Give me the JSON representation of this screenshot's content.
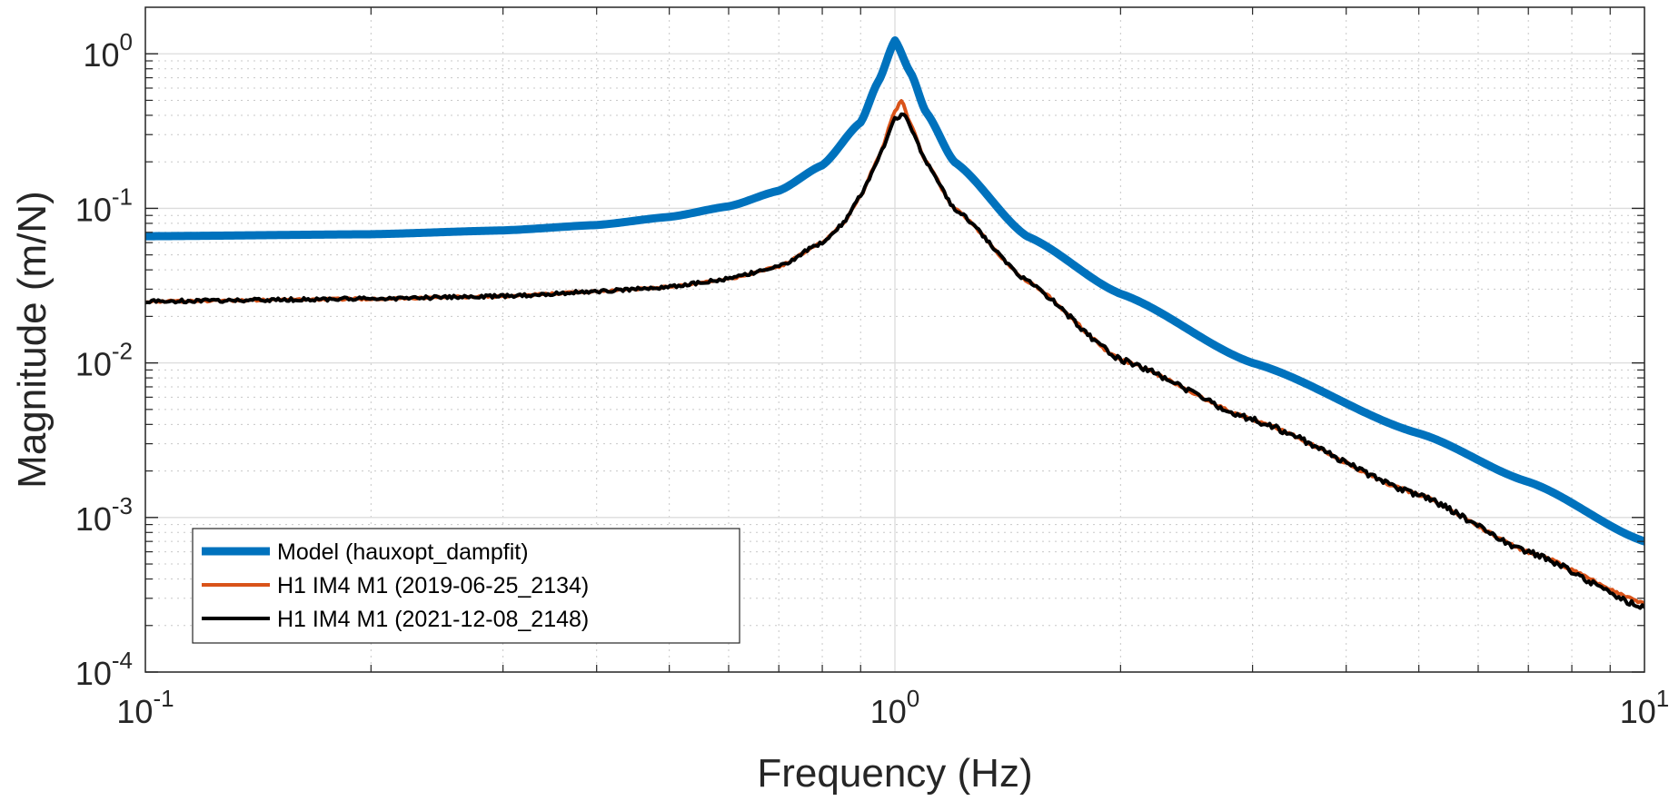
{
  "chart_data": {
    "type": "line",
    "title": "",
    "xlabel": "Frequency (Hz)",
    "ylabel": "Magnitude (m/N)",
    "x_scale": "log",
    "y_scale": "log",
    "xlim": [
      0.1,
      10
    ],
    "ylim": [
      0.0001,
      2
    ],
    "x_ticks": [
      {
        "base": "10",
        "exp": "-1"
      },
      {
        "base": "10",
        "exp": "0"
      },
      {
        "base": "10",
        "exp": "1"
      }
    ],
    "y_ticks": [
      {
        "base": "10",
        "exp": "0"
      },
      {
        "base": "10",
        "exp": "-1"
      },
      {
        "base": "10",
        "exp": "-2"
      },
      {
        "base": "10",
        "exp": "-3"
      },
      {
        "base": "10",
        "exp": "-4"
      }
    ],
    "grid": true,
    "minor_grid": true,
    "legend_position": "bottom-left",
    "series": [
      {
        "name": "Model (hauxopt_dampfit)",
        "color": "#0072BD",
        "x": [
          0.1,
          0.2,
          0.3,
          0.4,
          0.5,
          0.6,
          0.7,
          0.8,
          0.9,
          0.95,
          1.0,
          1.05,
          1.1,
          1.2,
          1.5,
          2,
          3,
          5,
          7,
          10
        ],
        "y": [
          0.066,
          0.068,
          0.072,
          0.078,
          0.088,
          0.103,
          0.13,
          0.19,
          0.36,
          0.66,
          1.22,
          0.75,
          0.42,
          0.2,
          0.066,
          0.028,
          0.01,
          0.0035,
          0.0017,
          0.0007
        ]
      },
      {
        "name": "H1 IM4  M1 (2019-06-25_2134)",
        "color": "#D95319",
        "x": [
          0.1,
          0.2,
          0.3,
          0.4,
          0.5,
          0.6,
          0.7,
          0.8,
          0.85,
          0.9,
          0.95,
          1.0,
          1.02,
          1.05,
          1.1,
          1.2,
          1.5,
          2,
          3,
          5,
          7,
          10
        ],
        "y": [
          0.025,
          0.026,
          0.027,
          0.029,
          0.031,
          0.035,
          0.042,
          0.06,
          0.078,
          0.12,
          0.21,
          0.42,
          0.5,
          0.35,
          0.2,
          0.1,
          0.034,
          0.0105,
          0.0043,
          0.0014,
          0.0006,
          0.00028
        ]
      },
      {
        "name": "H1 IM4  M1 (2021-12-08_2148)",
        "color": "#000000",
        "x": [
          0.1,
          0.2,
          0.3,
          0.4,
          0.5,
          0.6,
          0.7,
          0.8,
          0.85,
          0.9,
          0.95,
          1.0,
          1.03,
          1.05,
          1.1,
          1.2,
          1.5,
          2,
          3,
          5,
          7,
          10
        ],
        "y": [
          0.025,
          0.026,
          0.027,
          0.029,
          0.031,
          0.035,
          0.042,
          0.06,
          0.078,
          0.12,
          0.21,
          0.38,
          0.41,
          0.33,
          0.2,
          0.1,
          0.034,
          0.0105,
          0.0043,
          0.0014,
          0.0006,
          0.00026
        ]
      }
    ]
  }
}
